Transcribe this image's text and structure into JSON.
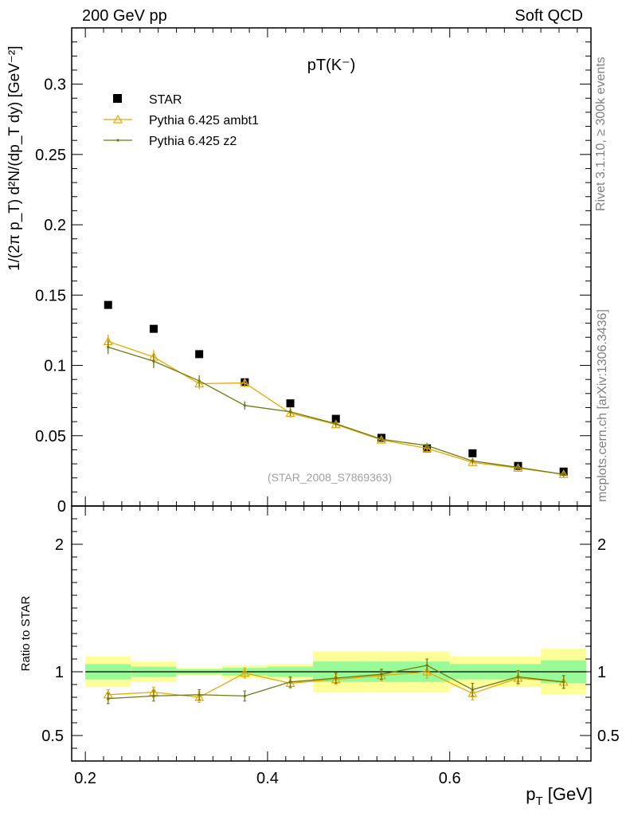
{
  "header": {
    "left": "200 GeV pp",
    "right": "Soft QCD"
  },
  "side_labels": {
    "rivet": "Rivet 3.1.10, ≥ 300k events",
    "mcplots": "mcplots.cern.ch [arXiv:1306.3436]"
  },
  "chart_data": {
    "type": "scatter",
    "title": "pT(K⁻)",
    "watermark": "(STAR_2008_S7869363)",
    "xlabel": "p_T [GeV]",
    "ylabel": "1/(2π p_T) d²N/(dp_T dy) [GeV⁻²]",
    "xlim": [
      0.185,
      0.755
    ],
    "main": {
      "ylim": [
        0,
        0.34
      ],
      "yticks": [
        0,
        0.05,
        0.1,
        0.15,
        0.2,
        0.25,
        0.3
      ],
      "ytick_labels": [
        "0",
        "0.05",
        "0.1",
        "0.15",
        "0.2",
        "0.25",
        "0.3"
      ]
    },
    "ratio": {
      "ylabel": "Ratio to STAR",
      "ylim": [
        0.3,
        2.3
      ],
      "yticks": [
        0.5,
        1,
        2
      ],
      "ytick_labels": [
        "0.5",
        "1",
        "2"
      ],
      "bands": [
        {
          "x0": 0.2,
          "x1": 0.25,
          "g": [
            0.94,
            1.06
          ],
          "y": [
            0.88,
            1.12
          ]
        },
        {
          "x0": 0.25,
          "x1": 0.3,
          "g": [
            0.96,
            1.04
          ],
          "y": [
            0.92,
            1.08
          ]
        },
        {
          "x0": 0.3,
          "x1": 0.35,
          "g": [
            0.98,
            1.02
          ],
          "y": [
            0.97,
            1.03
          ]
        },
        {
          "x0": 0.35,
          "x1": 0.4,
          "g": [
            0.97,
            1.03
          ],
          "y": [
            0.95,
            1.05
          ]
        },
        {
          "x0": 0.4,
          "x1": 0.45,
          "g": [
            0.96,
            1.04
          ],
          "y": [
            0.94,
            1.06
          ]
        },
        {
          "x0": 0.45,
          "x1": 0.6,
          "g": [
            0.92,
            1.08
          ],
          "y": [
            0.84,
            1.16
          ]
        },
        {
          "x0": 0.6,
          "x1": 0.7,
          "g": [
            0.94,
            1.06
          ],
          "y": [
            0.88,
            1.12
          ]
        },
        {
          "x0": 0.7,
          "x1": 0.75,
          "g": [
            0.91,
            1.09
          ],
          "y": [
            0.82,
            1.18
          ]
        }
      ]
    },
    "xticks": [
      0.2,
      0.4,
      0.6
    ],
    "xtick_labels": [
      "0.2",
      "0.4",
      "0.6"
    ],
    "series": [
      {
        "name": "STAR",
        "color": "#000000",
        "marker": "square",
        "x": [
          0.225,
          0.275,
          0.325,
          0.375,
          0.425,
          0.475,
          0.525,
          0.575,
          0.625,
          0.675,
          0.725
        ],
        "y": [
          0.143,
          0.126,
          0.108,
          0.088,
          0.073,
          0.062,
          0.0485,
          0.041,
          0.0375,
          0.0285,
          0.0245
        ],
        "ratio": [
          1,
          1,
          1,
          1,
          1,
          1,
          1,
          1,
          1,
          1,
          1
        ]
      },
      {
        "name": "Pythia 6.425 ambt1",
        "color": "#e8a800",
        "marker": "triangle",
        "x": [
          0.225,
          0.275,
          0.325,
          0.375,
          0.425,
          0.475,
          0.525,
          0.575,
          0.625,
          0.675,
          0.725
        ],
        "y": [
          0.117,
          0.106,
          0.087,
          0.0875,
          0.066,
          0.058,
          0.047,
          0.041,
          0.031,
          0.027,
          0.0225
        ],
        "err": [
          0.005,
          0.005,
          0.004,
          0.003,
          0.003,
          0.002,
          0.002,
          0.002,
          0.002,
          0.002,
          0.002
        ],
        "ratio": [
          0.82,
          0.84,
          0.8,
          0.99,
          0.91,
          0.94,
          0.97,
          1.0,
          0.83,
          0.95,
          0.92
        ],
        "ratio_err": [
          0.04,
          0.04,
          0.04,
          0.04,
          0.04,
          0.04,
          0.04,
          0.05,
          0.05,
          0.05,
          0.05
        ]
      },
      {
        "name": "Pythia 6.425 z2",
        "color": "#6e7a10",
        "marker": "dot",
        "x": [
          0.225,
          0.275,
          0.325,
          0.375,
          0.425,
          0.475,
          0.525,
          0.575,
          0.625,
          0.675,
          0.725
        ],
        "y": [
          0.113,
          0.103,
          0.089,
          0.0715,
          0.067,
          0.0585,
          0.0475,
          0.043,
          0.032,
          0.0275,
          0.0225
        ],
        "err": [
          0.005,
          0.005,
          0.004,
          0.003,
          0.003,
          0.002,
          0.002,
          0.002,
          0.002,
          0.002,
          0.002
        ],
        "ratio": [
          0.79,
          0.81,
          0.82,
          0.81,
          0.92,
          0.95,
          0.98,
          1.05,
          0.86,
          0.96,
          0.92
        ],
        "ratio_err": [
          0.04,
          0.04,
          0.04,
          0.04,
          0.04,
          0.04,
          0.04,
          0.05,
          0.05,
          0.05,
          0.05
        ]
      }
    ]
  }
}
